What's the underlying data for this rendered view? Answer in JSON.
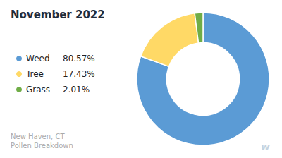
{
  "chart_data": {
    "type": "pie",
    "title": "November 2022",
    "subtitle": [
      "New Haven, CT",
      "Pollen Breakdown"
    ],
    "categories": [
      "Weed",
      "Tree",
      "Grass"
    ],
    "values": [
      80.57,
      17.43,
      2.01
    ],
    "value_labels": [
      "80.57%",
      "17.43%",
      "2.01%"
    ],
    "colors": [
      "#5B9BD5",
      "#FFD966",
      "#70AD47"
    ],
    "legend": "left",
    "annotations": [
      "w"
    ]
  }
}
